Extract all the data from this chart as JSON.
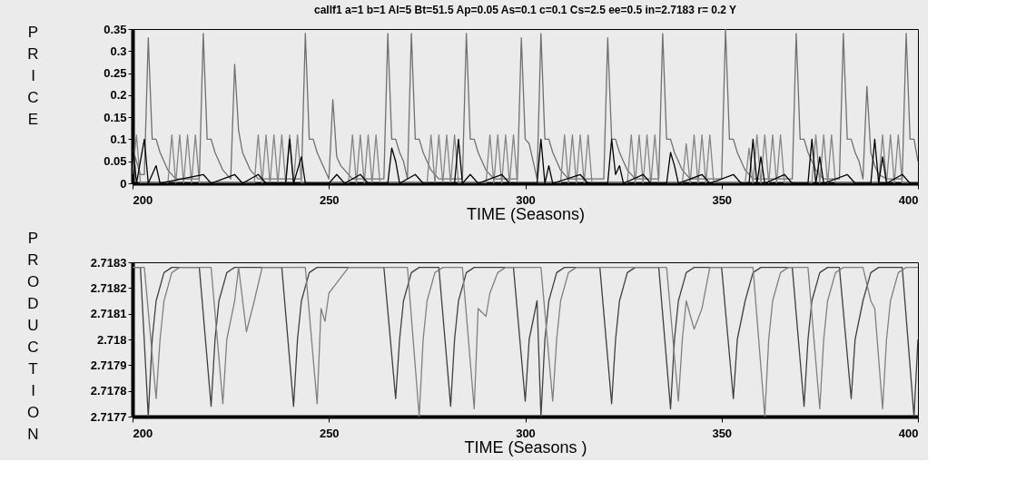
{
  "chart_data": [
    {
      "type": "line",
      "title": "callf1 a=1 b=1 Al=5 Bt=51.5 Ap=0.05 As=0.1 c=0.1 Cs=2.5 ee=0.5 in=2.7183 r= 0.2 Y",
      "xlabel": "TIME (Seasons)",
      "ylabel": "PRICE",
      "xlim": [
        200,
        400
      ],
      "xticks": [
        200,
        250,
        300,
        350,
        400
      ],
      "ylim": [
        0,
        0.35
      ],
      "yticks": [
        0,
        0.05,
        0.1,
        0.15,
        0.2,
        0.25,
        0.3,
        0.35
      ],
      "grid": false,
      "legend": false,
      "series": [
        {
          "color": "#707070",
          "x": [
            200,
            202,
            203,
            204,
            205,
            206,
            207,
            208,
            209,
            211,
            217,
            218,
            219,
            220,
            221,
            222,
            223,
            225,
            226,
            227,
            228,
            229,
            230,
            232,
            243,
            244,
            245,
            246,
            247,
            248,
            250,
            251,
            252,
            253,
            254,
            256,
            264,
            265,
            266,
            267,
            268,
            269,
            270,
            271,
            272,
            273,
            274,
            275,
            276,
            278,
            284,
            285,
            286,
            287,
            288,
            289,
            290,
            292,
            298,
            299,
            300,
            301,
            302,
            303,
            304,
            305,
            306,
            307,
            308,
            309,
            311,
            320,
            321,
            322,
            323,
            324,
            325,
            326,
            328,
            334,
            335,
            336,
            337,
            338,
            339,
            340,
            342,
            350,
            351,
            352,
            353,
            354,
            355,
            356,
            358,
            368,
            369,
            370,
            371,
            372,
            373,
            374,
            376,
            380,
            381,
            382,
            383,
            384,
            385,
            386,
            387,
            388,
            389,
            390,
            392,
            396,
            397,
            398,
            399,
            400
          ],
          "values": [
            0.08,
            0.02,
            0.02,
            0.33,
            0.1,
            0.1,
            0.07,
            0.05,
            0.03,
            0.01,
            0.01,
            0.34,
            0.1,
            0.1,
            0.07,
            0.05,
            0.03,
            0.01,
            0.27,
            0.12,
            0.07,
            0.05,
            0.03,
            0.01,
            0.01,
            0.34,
            0.1,
            0.1,
            0.07,
            0.05,
            0.01,
            0.19,
            0.06,
            0.04,
            0.03,
            0.01,
            0.01,
            0.34,
            0.1,
            0.1,
            0.07,
            0.05,
            0.01,
            0.34,
            0.1,
            0.1,
            0.07,
            0.05,
            0.03,
            0.01,
            0.01,
            0.34,
            0.1,
            0.1,
            0.07,
            0.05,
            0.03,
            0.01,
            0.01,
            0.33,
            0.1,
            0.09,
            0.05,
            0.01,
            0.34,
            0.1,
            0.1,
            0.07,
            0.05,
            0.03,
            0.01,
            0.01,
            0.33,
            0.1,
            0.1,
            0.07,
            0.05,
            0.03,
            0.01,
            0.01,
            0.34,
            0.1,
            0.1,
            0.07,
            0.05,
            0.03,
            0.01,
            0.01,
            0.35,
            0.1,
            0.1,
            0.07,
            0.05,
            0.03,
            0.01,
            0.01,
            0.34,
            0.1,
            0.1,
            0.07,
            0.05,
            0.03,
            0.01,
            0.01,
            0.34,
            0.1,
            0.1,
            0.07,
            0.05,
            0.01,
            0.22,
            0.07,
            0.04,
            0.02,
            0.01,
            0.01,
            0.34,
            0.1,
            0.1,
            0.05
          ]
        },
        {
          "color": "#858585",
          "x": [
            200,
            201,
            202,
            209,
            210,
            211,
            212,
            213,
            214,
            215,
            216,
            217,
            231,
            232,
            233,
            234,
            235,
            236,
            237,
            238,
            239,
            240,
            241,
            242,
            243,
            255,
            256,
            257,
            258,
            259,
            260,
            261,
            262,
            263,
            275,
            276,
            277,
            278,
            279,
            280,
            281,
            282,
            283,
            290,
            291,
            292,
            293,
            294,
            295,
            296,
            297,
            298,
            309,
            310,
            311,
            312,
            313,
            314,
            315,
            316,
            317,
            326,
            327,
            328,
            329,
            330,
            331,
            332,
            333,
            334,
            340,
            341,
            342,
            343,
            344,
            345,
            346,
            347,
            348,
            356,
            357,
            358,
            359,
            360,
            361,
            362,
            363,
            364,
            365,
            366,
            373,
            374,
            375,
            376,
            377,
            378,
            379,
            390,
            391,
            392,
            393,
            394,
            395,
            396,
            400
          ],
          "values": [
            0.02,
            0.11,
            0,
            0,
            0.11,
            0,
            0.11,
            0,
            0.11,
            0,
            0.11,
            0,
            0,
            0.11,
            0,
            0.11,
            0,
            0.11,
            0,
            0.11,
            0,
            0.11,
            0,
            0.11,
            0,
            0,
            0.11,
            0,
            0.11,
            0,
            0.11,
            0,
            0.11,
            0,
            0,
            0.11,
            0,
            0.11,
            0,
            0.11,
            0,
            0.11,
            0,
            0,
            0.11,
            0,
            0.11,
            0,
            0.11,
            0,
            0.11,
            0,
            0,
            0.11,
            0,
            0.11,
            0,
            0.11,
            0,
            0.11,
            0,
            0,
            0.11,
            0,
            0.11,
            0,
            0.11,
            0,
            0.11,
            0,
            0,
            0.09,
            0,
            0.11,
            0,
            0.11,
            0,
            0.11,
            0,
            0,
            0.08,
            0,
            0.11,
            0,
            0.11,
            0,
            0.11,
            0,
            0.11,
            0,
            0,
            0.11,
            0,
            0.11,
            0,
            0.11,
            0,
            0,
            0.11,
            0,
            0.11,
            0,
            0.11,
            0,
            0
          ]
        },
        {
          "color": "#000000",
          "x": [
            200,
            201,
            203,
            204,
            206,
            207,
            218,
            220,
            226,
            228,
            232,
            234,
            239,
            240,
            241,
            243,
            244,
            250,
            252,
            254,
            258,
            260,
            265,
            266,
            267,
            268,
            272,
            274,
            282,
            283,
            284,
            286,
            288,
            294,
            296,
            303,
            304,
            305,
            306,
            307,
            314,
            316,
            321,
            322,
            323,
            324,
            325,
            330,
            332,
            336,
            337,
            338,
            339,
            345,
            347,
            353,
            355,
            357,
            358,
            359,
            360,
            361,
            366,
            368,
            372,
            373,
            374,
            375,
            376,
            382,
            384,
            388,
            389,
            390,
            391,
            392,
            396,
            398,
            400
          ],
          "values": [
            0.1,
            0,
            0.1,
            0,
            0.04,
            0,
            0.02,
            0,
            0.02,
            0,
            0.02,
            0,
            0,
            0.1,
            0,
            0.06,
            0,
            0,
            0.02,
            0,
            0.02,
            0,
            0,
            0.08,
            0.05,
            0,
            0.02,
            0,
            0,
            0.1,
            0,
            0.02,
            0,
            0.02,
            0,
            0,
            0.1,
            0,
            0.04,
            0,
            0.02,
            0,
            0,
            0.1,
            0.02,
            0.04,
            0,
            0.02,
            0,
            0,
            0.07,
            0.04,
            0,
            0.02,
            0,
            0.02,
            0,
            0,
            0.1,
            0,
            0.06,
            0,
            0.02,
            0,
            0,
            0.1,
            0,
            0.06,
            0,
            0.02,
            0,
            0,
            0.1,
            0,
            0.06,
            0,
            0.02,
            0,
            0
          ]
        }
      ]
    },
    {
      "type": "line",
      "xlabel": "TIME (Seasons )",
      "ylabel": "PRODUCTION",
      "xlim": [
        200,
        400
      ],
      "xticks": [
        200,
        250,
        300,
        350,
        400
      ],
      "ylim": [
        2.7177,
        2.7183
      ],
      "yticks": [
        2.7177,
        2.7178,
        2.7179,
        2.718,
        2.7181,
        2.7182,
        2.7183
      ],
      "grid": false,
      "legend": false,
      "series": [
        {
          "color": "#404040",
          "x": [
            200,
            202,
            204,
            205,
            206,
            208,
            210,
            217,
            220,
            221,
            222,
            224,
            226,
            238,
            241,
            242,
            243,
            245,
            247,
            264,
            267,
            268,
            269,
            271,
            273,
            278,
            281,
            282,
            283,
            285,
            287,
            297,
            300,
            301,
            303,
            304,
            305,
            306,
            308,
            310,
            319,
            322,
            323,
            324,
            326,
            328,
            334,
            337,
            338,
            339,
            341,
            343,
            350,
            353,
            354,
            356,
            358,
            360,
            368,
            371,
            372,
            373,
            375,
            377,
            380,
            383,
            384,
            386,
            388,
            390,
            396,
            399,
            400
          ],
          "values": [
            2.71828,
            2.71828,
            2.7177,
            2.718,
            2.71815,
            2.71826,
            2.71828,
            2.71828,
            2.71774,
            2.718,
            2.71815,
            2.71826,
            2.71828,
            2.71828,
            2.71774,
            2.718,
            2.71815,
            2.71826,
            2.71828,
            2.71828,
            2.71777,
            2.718,
            2.71815,
            2.71826,
            2.71828,
            2.71828,
            2.71774,
            2.718,
            2.71815,
            2.71826,
            2.71828,
            2.71828,
            2.71776,
            2.718,
            2.71815,
            2.7177,
            2.718,
            2.71815,
            2.71826,
            2.71828,
            2.71828,
            2.71775,
            2.718,
            2.71815,
            2.71826,
            2.71828,
            2.71828,
            2.71773,
            2.718,
            2.71815,
            2.71826,
            2.71828,
            2.71828,
            2.71777,
            2.718,
            2.71815,
            2.71826,
            2.71828,
            2.71828,
            2.71774,
            2.718,
            2.71815,
            2.71826,
            2.71828,
            2.71828,
            2.71777,
            2.718,
            2.71815,
            2.71826,
            2.71828,
            2.71828,
            2.7177,
            2.718
          ]
        },
        {
          "color": "#808080",
          "x": [
            200,
            203,
            206,
            207,
            208,
            210,
            212,
            220,
            223,
            224,
            226,
            227,
            229,
            231,
            233,
            244,
            247,
            248,
            249,
            250,
            252,
            255,
            270,
            273,
            274,
            275,
            277,
            279,
            284,
            287,
            288,
            290,
            291,
            293,
            295,
            304,
            307,
            308,
            309,
            311,
            313,
            336,
            339,
            340,
            341,
            343,
            345,
            347,
            358,
            361,
            362,
            363,
            365,
            367,
            372,
            375,
            376,
            377,
            379,
            381,
            386,
            388,
            389,
            391,
            392,
            393,
            395,
            397,
            400
          ],
          "values": [
            2.71828,
            2.71828,
            2.71777,
            2.718,
            2.71815,
            2.71826,
            2.71828,
            2.71828,
            2.71775,
            2.718,
            2.71815,
            2.71828,
            2.71803,
            2.71815,
            2.71828,
            2.71828,
            2.71775,
            2.71812,
            2.71807,
            2.71818,
            2.71822,
            2.71828,
            2.71828,
            2.7177,
            2.718,
            2.71815,
            2.71826,
            2.71828,
            2.71828,
            2.71773,
            2.71812,
            2.71809,
            2.71818,
            2.71826,
            2.71828,
            2.71828,
            2.71776,
            2.718,
            2.71815,
            2.71826,
            2.71828,
            2.71828,
            2.71776,
            2.718,
            2.71815,
            2.71804,
            2.71812,
            2.71828,
            2.71828,
            2.7177,
            2.718,
            2.71815,
            2.71826,
            2.71828,
            2.71828,
            2.71773,
            2.718,
            2.71815,
            2.71826,
            2.71828,
            2.71828,
            2.71815,
            2.71812,
            2.71773,
            2.718,
            2.71815,
            2.71826,
            2.71828,
            2.71828
          ]
        }
      ]
    }
  ]
}
